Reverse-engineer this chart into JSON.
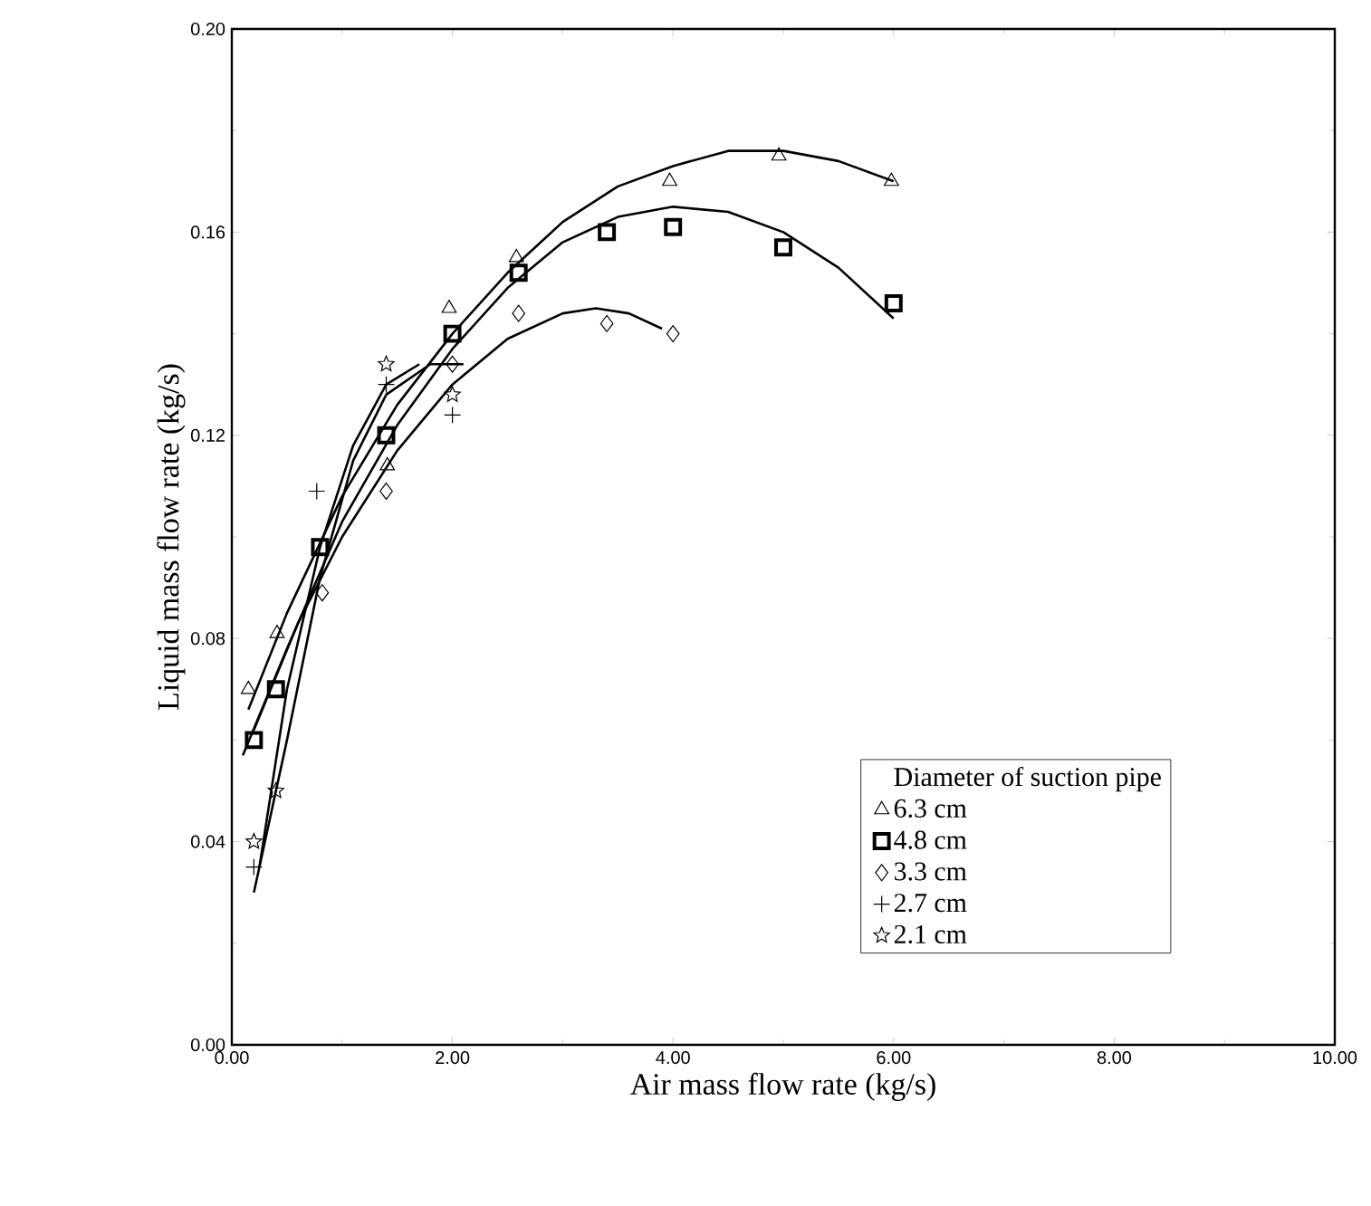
{
  "chart_data": {
    "type": "scatter",
    "xlabel": "Air mass flow rate (kg/s)",
    "ylabel": "Liquid mass flow rate (kg/s)",
    "legend_title": "Diameter of suction pipe",
    "legend": "bottom right",
    "grid": false,
    "xlim": [
      0,
      10
    ],
    "xticks": [
      {
        "value": 0,
        "label": "0.00"
      },
      {
        "value": 2,
        "label": "2.00"
      },
      {
        "value": 4,
        "label": "4.00"
      },
      {
        "value": 6,
        "label": "6.00"
      },
      {
        "value": 8,
        "label": "8.00"
      },
      {
        "value": 10,
        "label": "10.00"
      }
    ],
    "ylim": [
      0,
      0.2
    ],
    "yticks": [
      {
        "value": 0,
        "label": "0.00"
      },
      {
        "value": 0.04,
        "label": "0.04"
      },
      {
        "value": 0.08,
        "label": "0.08"
      },
      {
        "value": 0.12,
        "label": "0.12"
      },
      {
        "value": 0.16,
        "label": "0.16"
      },
      {
        "value": 0.2,
        "label": "0.20"
      }
    ],
    "series": [
      {
        "name": "6.3  cm",
        "marker": "triangle",
        "color": "#000000",
        "x": [
          0.15,
          0.41,
          1.41,
          1.97,
          2.58,
          3.97,
          4.96,
          5.98
        ],
        "values": [
          0.07,
          0.081,
          0.114,
          0.145,
          0.155,
          0.17,
          0.175,
          0.17
        ]
      },
      {
        "name": "4.8  cm",
        "marker": "square",
        "color": "#000000",
        "x": [
          0.2,
          0.4,
          0.8,
          1.4,
          2.0,
          2.6,
          3.4,
          4.0,
          5.0,
          6.0
        ],
        "values": [
          0.06,
          0.07,
          0.098,
          0.12,
          0.14,
          0.152,
          0.16,
          0.161,
          0.157,
          0.146
        ]
      },
      {
        "name": "3.3  cm",
        "marker": "diamond",
        "color": "#000000",
        "x": [
          0.82,
          1.4,
          2.0,
          2.6,
          3.4,
          4.0
        ],
        "values": [
          0.089,
          0.109,
          0.134,
          0.144,
          0.142,
          0.14
        ]
      },
      {
        "name": "2.7  cm",
        "marker": "cross",
        "color": "#000000",
        "x": [
          0.2,
          0.77,
          1.4,
          2.0
        ],
        "values": [
          0.035,
          0.109,
          0.13,
          0.124
        ]
      },
      {
        "name": "2.1  cm",
        "marker": "star",
        "color": "#000000",
        "x": [
          0.2,
          0.4,
          1.4,
          2.0
        ],
        "values": [
          0.04,
          0.05,
          0.134,
          0.128
        ]
      },
      {
        "type": "line",
        "marker": "none",
        "color": "#000000",
        "x": [
          0.15,
          0.5,
          1,
          1.5,
          2,
          2.5,
          3,
          3.5,
          4,
          4.5,
          5,
          5.5,
          6
        ],
        "values": [
          0.066,
          0.085,
          0.108,
          0.126,
          0.14,
          0.152,
          0.162,
          0.169,
          0.173,
          0.176,
          0.176,
          0.174,
          0.17
        ]
      },
      {
        "type": "line",
        "marker": "none",
        "color": "#000000",
        "x": [
          0.1,
          0.5,
          1,
          1.5,
          2,
          2.5,
          3,
          3.5,
          4,
          4.5,
          5,
          5.5,
          6
        ],
        "values": [
          0.057,
          0.078,
          0.103,
          0.122,
          0.137,
          0.149,
          0.158,
          0.163,
          0.165,
          0.164,
          0.16,
          0.153,
          0.143
        ]
      },
      {
        "type": "line",
        "marker": "none",
        "color": "#000000",
        "x": [
          0.2,
          0.6,
          1,
          1.5,
          2,
          2.5,
          3,
          3.3,
          3.6,
          3.9
        ],
        "values": [
          0.062,
          0.083,
          0.1,
          0.117,
          0.13,
          0.139,
          0.144,
          0.145,
          0.144,
          0.141
        ]
      },
      {
        "type": "line",
        "marker": "none",
        "color": "#000000",
        "x": [
          0.25,
          0.5,
          0.8,
          1.1,
          1.4,
          1.7
        ],
        "values": [
          0.035,
          0.07,
          0.098,
          0.118,
          0.13,
          0.134
        ]
      },
      {
        "type": "line",
        "marker": "none",
        "color": "#000000",
        "x": [
          0.2,
          0.5,
          0.8,
          1.1,
          1.4,
          1.8,
          2.1
        ],
        "values": [
          0.03,
          0.06,
          0.092,
          0.115,
          0.128,
          0.134,
          0.134
        ]
      }
    ]
  }
}
